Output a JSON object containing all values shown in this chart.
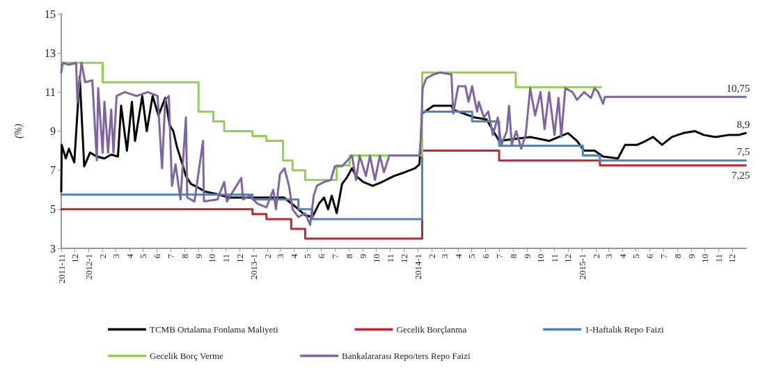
{
  "chart_data": {
    "type": "line",
    "ylabel": "(%)",
    "legend": "bottom",
    "grid": false,
    "marker": "none",
    "line_style": "solid",
    "xlim": [
      "2011-11",
      "2016-01"
    ],
    "xticks": [
      {
        "value": "2011-11",
        "label": "2011-11"
      },
      {
        "value": "2011-12",
        "label": "12"
      },
      {
        "value": "2012-01",
        "label": "2012-1"
      },
      {
        "value": "2012-02",
        "label": "2"
      },
      {
        "value": "2012-03",
        "label": "3"
      },
      {
        "value": "2012-04",
        "label": "4"
      },
      {
        "value": "2012-05",
        "label": "5"
      },
      {
        "value": "2012-06",
        "label": "6"
      },
      {
        "value": "2012-07",
        "label": "7"
      },
      {
        "value": "2012-08",
        "label": "8"
      },
      {
        "value": "2012-09",
        "label": "9"
      },
      {
        "value": "2012-10",
        "label": "10"
      },
      {
        "value": "2012-11",
        "label": "11"
      },
      {
        "value": "2012-12",
        "label": "12"
      },
      {
        "value": "2013-01",
        "label": "2013-1"
      },
      {
        "value": "2013-02",
        "label": "2"
      },
      {
        "value": "2013-03",
        "label": "3"
      },
      {
        "value": "2013-04",
        "label": "4"
      },
      {
        "value": "2013-05",
        "label": "5"
      },
      {
        "value": "2013-06",
        "label": "6"
      },
      {
        "value": "2013-07",
        "label": "7"
      },
      {
        "value": "2013-08",
        "label": "8"
      },
      {
        "value": "2013-09",
        "label": "9"
      },
      {
        "value": "2013-10",
        "label": "10"
      },
      {
        "value": "2013-11",
        "label": "11"
      },
      {
        "value": "2013-12",
        "label": "12"
      },
      {
        "value": "2014-01",
        "label": "2014-1"
      },
      {
        "value": "2014-02",
        "label": "2"
      },
      {
        "value": "2014-03",
        "label": "3"
      },
      {
        "value": "2014-04",
        "label": "4"
      },
      {
        "value": "2014-05",
        "label": "5"
      },
      {
        "value": "2014-06",
        "label": "6"
      },
      {
        "value": "2014-07",
        "label": "7"
      },
      {
        "value": "2014-08",
        "label": "8"
      },
      {
        "value": "2014-09",
        "label": "9"
      },
      {
        "value": "2014-10",
        "label": "10"
      },
      {
        "value": "2014-11",
        "label": "11"
      },
      {
        "value": "2014-12",
        "label": "12"
      },
      {
        "value": "2015-01",
        "label": "2015-1"
      },
      {
        "value": "2015-02",
        "label": "2"
      },
      {
        "value": "2015-03",
        "label": "3"
      },
      {
        "value": "2015-04",
        "label": "4"
      },
      {
        "value": "2015-05",
        "label": "5"
      },
      {
        "value": "2015-06",
        "label": "6"
      },
      {
        "value": "2015-07",
        "label": "7"
      },
      {
        "value": "2015-08",
        "label": "8"
      },
      {
        "value": "2015-09",
        "label": "9"
      },
      {
        "value": "2015-10",
        "label": "10"
      },
      {
        "value": "2015-11",
        "label": "11"
      },
      {
        "value": "2015-12",
        "label": "12"
      }
    ],
    "ylim": [
      3,
      15
    ],
    "yticks": [
      3,
      5,
      7,
      9,
      11,
      13,
      15
    ],
    "annotations": [
      {
        "text": "10,75",
        "x": "2015-12-31",
        "y": 10.75
      },
      {
        "text": "8,9",
        "x": "2015-12-31",
        "y": 8.9
      },
      {
        "text": "7,5",
        "x": "2015-12-31",
        "y": 7.5
      },
      {
        "text": "7,25",
        "x": "2015-12-31",
        "y": 7.25
      }
    ],
    "series": [
      {
        "name": "TCMB Ortalama Fonlama Maliyeti",
        "type": "line",
        "color": "#000000",
        "x": [
          "2011-11-01",
          "2011-11-02",
          "2011-11-11",
          "2011-11-18",
          "2011-11-30",
          "2011-12-12",
          "2011-12-22",
          "2012-01-04",
          "2012-01-19",
          "2012-02-05",
          "2012-02-20",
          "2012-03-06",
          "2012-03-13",
          "2012-03-26",
          "2012-04-06",
          "2012-04-13",
          "2012-04-29",
          "2012-05-09",
          "2012-05-22",
          "2012-06-04",
          "2012-06-19",
          "2012-06-29",
          "2012-07-07",
          "2012-07-15",
          "2012-07-26",
          "2012-08-04",
          "2012-08-15",
          "2012-09-01",
          "2012-09-16",
          "2012-10-08",
          "2012-11-08",
          "2012-12-25",
          "2013-03-10",
          "2013-04-06",
          "2013-04-26",
          "2013-05-12",
          "2013-05-27",
          "2013-06-07",
          "2013-06-16",
          "2013-06-24",
          "2013-07-05",
          "2013-07-17",
          "2013-07-27",
          "2013-08-08",
          "2013-08-17",
          "2013-09-02",
          "2013-09-23",
          "2013-10-14",
          "2013-11-09",
          "2013-12-04",
          "2013-12-26",
          "2014-01-05",
          "2014-01-11",
          "2014-02-05",
          "2014-03-17",
          "2014-03-21",
          "2014-05-07",
          "2014-06-03",
          "2014-07-01",
          "2014-09-08",
          "2014-10-20",
          "2014-12-01",
          "2014-12-21",
          "2015-01-06",
          "2015-01-29",
          "2015-02-17",
          "2015-03-22",
          "2015-04-07",
          "2015-05-04",
          "2015-05-23",
          "2015-06-08",
          "2015-06-28",
          "2015-07-20",
          "2015-08-14",
          "2015-09-09",
          "2015-09-29",
          "2015-10-25",
          "2015-11-22",
          "2015-12-15",
          "2015-12-31"
        ],
        "values": [
          5.9,
          8.3,
          7.6,
          8.1,
          7.4,
          11.8,
          7.2,
          7.9,
          7.7,
          7.6,
          7.8,
          7.7,
          10.3,
          8,
          10.5,
          8.5,
          10.8,
          9,
          10.8,
          9.8,
          10.7,
          9.3,
          9,
          8.2,
          7.4,
          6.7,
          6.3,
          6.1,
          5.9,
          5.8,
          5.6,
          5.6,
          5.6,
          5.1,
          4.7,
          4.6,
          5.3,
          5.6,
          5.0,
          5.7,
          4.8,
          6.3,
          6.6,
          7.1,
          6.7,
          6.4,
          6.2,
          6.4,
          6.7,
          6.9,
          7.1,
          7.3,
          9.9,
          10.3,
          10.3,
          10.1,
          9.7,
          9.6,
          8.5,
          8.7,
          8.5,
          8.9,
          8.5,
          8.0,
          8.0,
          7.7,
          7.6,
          8.3,
          8.3,
          8.5,
          8.7,
          8.3,
          8.7,
          8.9,
          9.0,
          8.8,
          8.7,
          8.8,
          8.8,
          8.9
        ]
      },
      {
        "name": "Gecelik Borçlanma",
        "type": "step",
        "color": "#c0272d",
        "x": [
          "2011-11-01",
          "2012-12-30",
          "2013-01-30",
          "2013-03-26",
          "2013-04-26",
          "2014-01-11",
          "2014-07-01",
          "2015-02-10",
          "2015-12-31"
        ],
        "values": [
          5,
          4.75,
          4.5,
          4,
          3.5,
          8,
          7.5,
          7.25,
          7.25
        ]
      },
      {
        "name": "1-Haftalık Repo Faizi",
        "type": "step",
        "color": "#4f81bd",
        "x": [
          "2011-11-01",
          "2012-12-30",
          "2013-04-11",
          "2013-05-12",
          "2014-01-11",
          "2014-05-02",
          "2014-07-01",
          "2015-01-03",
          "2015-02-10",
          "2015-12-31"
        ],
        "values": [
          5.75,
          5.5,
          5,
          4.5,
          10,
          9.5,
          8.25,
          7.75,
          7.5,
          7.5
        ]
      },
      {
        "name": "Gecelik Borç Verme",
        "type": "step",
        "color": "#92d050",
        "x": [
          "2011-11-01",
          "2012-02-01",
          "2012-09-01",
          "2012-10-04",
          "2012-10-28",
          "2012-12-30",
          "2013-01-30",
          "2013-03-08",
          "2013-03-29",
          "2013-04-26",
          "2013-07-05",
          "2013-08-03",
          "2014-01-11",
          "2014-08-07",
          "2015-02-12"
        ],
        "values": [
          12.5,
          11.5,
          10,
          9.5,
          9,
          8.75,
          8.5,
          7.5,
          7,
          6.5,
          7.25,
          7.75,
          12,
          11.25,
          11.25
        ]
      },
      {
        "name": "Bankalararası Repo/ters Repo Faizi",
        "type": "line",
        "color": "#8064a2",
        "x": [
          "2011-11-01",
          "2011-11-04",
          "2011-11-18",
          "2011-12-04",
          "2011-12-07",
          "2011-12-16",
          "2011-12-24",
          "2012-01-09",
          "2012-01-19",
          "2012-01-22",
          "2012-02-01",
          "2012-02-05",
          "2012-02-13",
          "2012-02-20",
          "2012-02-25",
          "2012-03-03",
          "2012-03-21",
          "2012-04-17",
          "2012-05-11",
          "2012-06-02",
          "2012-06-12",
          "2012-06-19",
          "2012-06-27",
          "2012-07-04",
          "2012-07-12",
          "2012-07-23",
          "2012-08-04",
          "2012-08-07",
          "2012-08-23",
          "2012-09-11",
          "2012-09-13",
          "2012-10-13",
          "2012-10-28",
          "2012-11-03",
          "2012-12-05",
          "2012-12-09",
          "2012-12-25",
          "2013-01-09",
          "2013-01-30",
          "2013-02-14",
          "2013-02-20",
          "2013-03-01",
          "2013-03-11",
          "2013-03-21",
          "2013-03-29",
          "2013-04-11",
          "2013-04-26",
          "2013-05-07",
          "2013-05-15",
          "2013-05-22",
          "2013-06-07",
          "2013-06-22",
          "2013-07-01",
          "2013-07-17",
          "2013-08-02",
          "2013-08-08",
          "2013-08-17",
          "2013-08-25",
          "2013-09-08",
          "2013-09-17",
          "2013-09-28",
          "2013-10-09",
          "2013-10-18",
          "2013-10-30",
          "2014-01-05",
          "2014-01-08",
          "2014-01-12",
          "2014-01-20",
          "2014-02-05",
          "2014-02-20",
          "2014-03-17",
          "2014-03-21",
          "2014-04-01",
          "2014-04-17",
          "2014-04-24",
          "2014-05-02",
          "2014-05-13",
          "2014-05-17",
          "2014-05-28",
          "2014-06-07",
          "2014-06-17",
          "2014-06-28",
          "2014-07-06",
          "2014-07-18",
          "2014-07-23",
          "2014-07-29",
          "2014-08-08",
          "2014-08-19",
          "2014-08-29",
          "2014-09-08",
          "2014-09-19",
          "2014-10-01",
          "2014-10-10",
          "2014-10-20",
          "2014-11-01",
          "2014-11-10",
          "2014-11-16",
          "2014-11-25",
          "2014-12-11",
          "2014-12-21",
          "2015-01-06",
          "2015-01-21",
          "2015-01-29",
          "2015-02-06",
          "2015-02-17",
          "2015-02-21",
          "2015-12-31"
        ],
        "values": [
          12.0,
          12.5,
          12.4,
          12.5,
          10.5,
          12.5,
          11.5,
          11.6,
          7.5,
          11.2,
          7.9,
          10.5,
          7.9,
          10.1,
          7.9,
          10.8,
          11.0,
          10.8,
          11.0,
          10.8,
          7.1,
          10.6,
          10.8,
          6.2,
          7.3,
          5.5,
          9.7,
          5.6,
          5.4,
          8.5,
          5.4,
          5.5,
          6.4,
          5.4,
          6.6,
          5.5,
          5.7,
          5.3,
          5.1,
          6.0,
          5.0,
          6.8,
          7.1,
          6.2,
          5.0,
          4.6,
          4.8,
          4.2,
          5.7,
          6.2,
          6.4,
          6.5,
          7.2,
          7.2,
          7.6,
          7.75,
          6.5,
          7.75,
          6.7,
          7.75,
          6.5,
          7.75,
          6.9,
          7.75,
          7.75,
          8.6,
          11.2,
          11.7,
          11.9,
          12.0,
          11.9,
          9.9,
          11.3,
          11.3,
          10.5,
          11.3,
          10.0,
          10.5,
          9.7,
          10.0,
          8.8,
          9.7,
          8.3,
          9.0,
          10.3,
          8.3,
          9.0,
          8.1,
          8.8,
          11.2,
          9.8,
          11.0,
          9.1,
          11.0,
          8.8,
          10.7,
          8.7,
          11.2,
          11.0,
          10.6,
          11.0,
          10.7,
          11.2,
          11.0,
          10.4,
          10.75,
          10.75
        ]
      }
    ]
  }
}
